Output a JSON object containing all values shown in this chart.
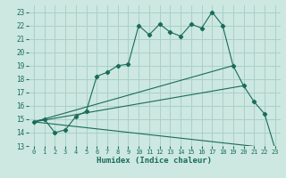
{
  "xlabel": "Humidex (Indice chaleur)",
  "bg_color": "#cce8e0",
  "grid_color": "#aad0c8",
  "line_color": "#1a6b5a",
  "xlim": [
    -0.5,
    23.5
  ],
  "ylim": [
    13,
    23.5
  ],
  "yticks": [
    13,
    14,
    15,
    16,
    17,
    18,
    19,
    20,
    21,
    22,
    23
  ],
  "xticks": [
    0,
    1,
    2,
    3,
    4,
    5,
    6,
    7,
    8,
    9,
    10,
    11,
    12,
    13,
    14,
    15,
    16,
    17,
    18,
    19,
    20,
    21,
    22,
    23
  ],
  "line1_x": [
    0,
    1,
    2,
    3,
    4,
    5,
    6,
    7,
    8,
    9,
    10,
    11,
    12,
    13,
    14,
    15,
    16,
    17,
    18,
    19,
    20,
    21,
    22,
    23
  ],
  "line1_y": [
    14.8,
    15.0,
    14.0,
    14.2,
    15.2,
    15.6,
    18.2,
    18.5,
    19.0,
    19.1,
    22.0,
    21.3,
    22.1,
    21.5,
    21.2,
    22.1,
    21.8,
    23.0,
    22.0,
    19.0,
    17.5,
    16.3,
    15.4,
    12.8
  ],
  "line2_x": [
    0,
    19
  ],
  "line2_y": [
    14.8,
    19.0
  ],
  "line3_x": [
    0,
    20
  ],
  "line3_y": [
    14.8,
    17.5
  ],
  "line4_x": [
    0,
    23
  ],
  "line4_y": [
    14.8,
    12.8
  ]
}
